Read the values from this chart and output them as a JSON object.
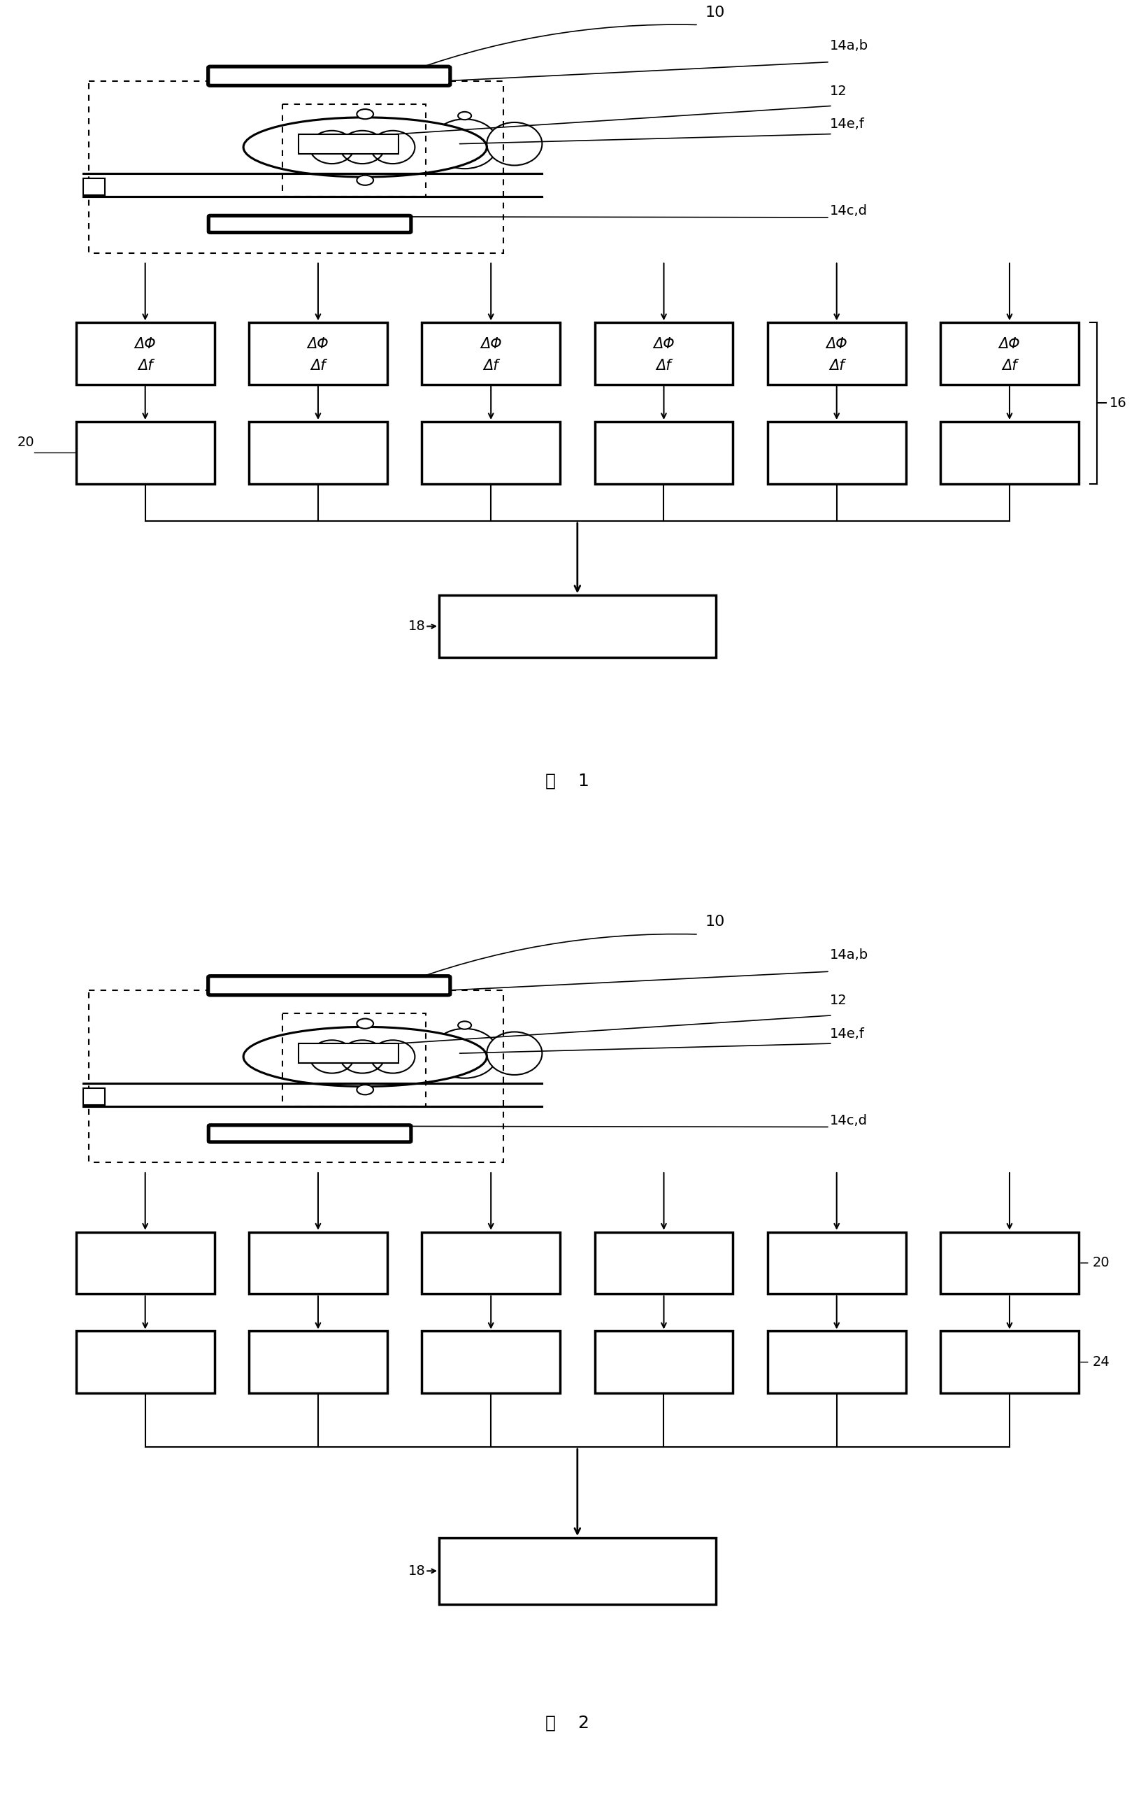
{
  "bg_color": "#ffffff",
  "line_color": "#000000",
  "fig_width": 16.22,
  "fig_height": 26.01,
  "fig1_label": "图    1",
  "fig2_label": "图    2",
  "label_10": "10",
  "label_14ab": "14a,b",
  "label_12": "12",
  "label_14ef": "14e,f",
  "label_14cd": "14c,d",
  "label_16": "16",
  "label_18": "18",
  "label_20_fig1": "20",
  "label_20_fig2": "20",
  "label_24": "24",
  "delta_phi": "ΔΦ",
  "delta_f": "Δf",
  "n_channels": 6
}
